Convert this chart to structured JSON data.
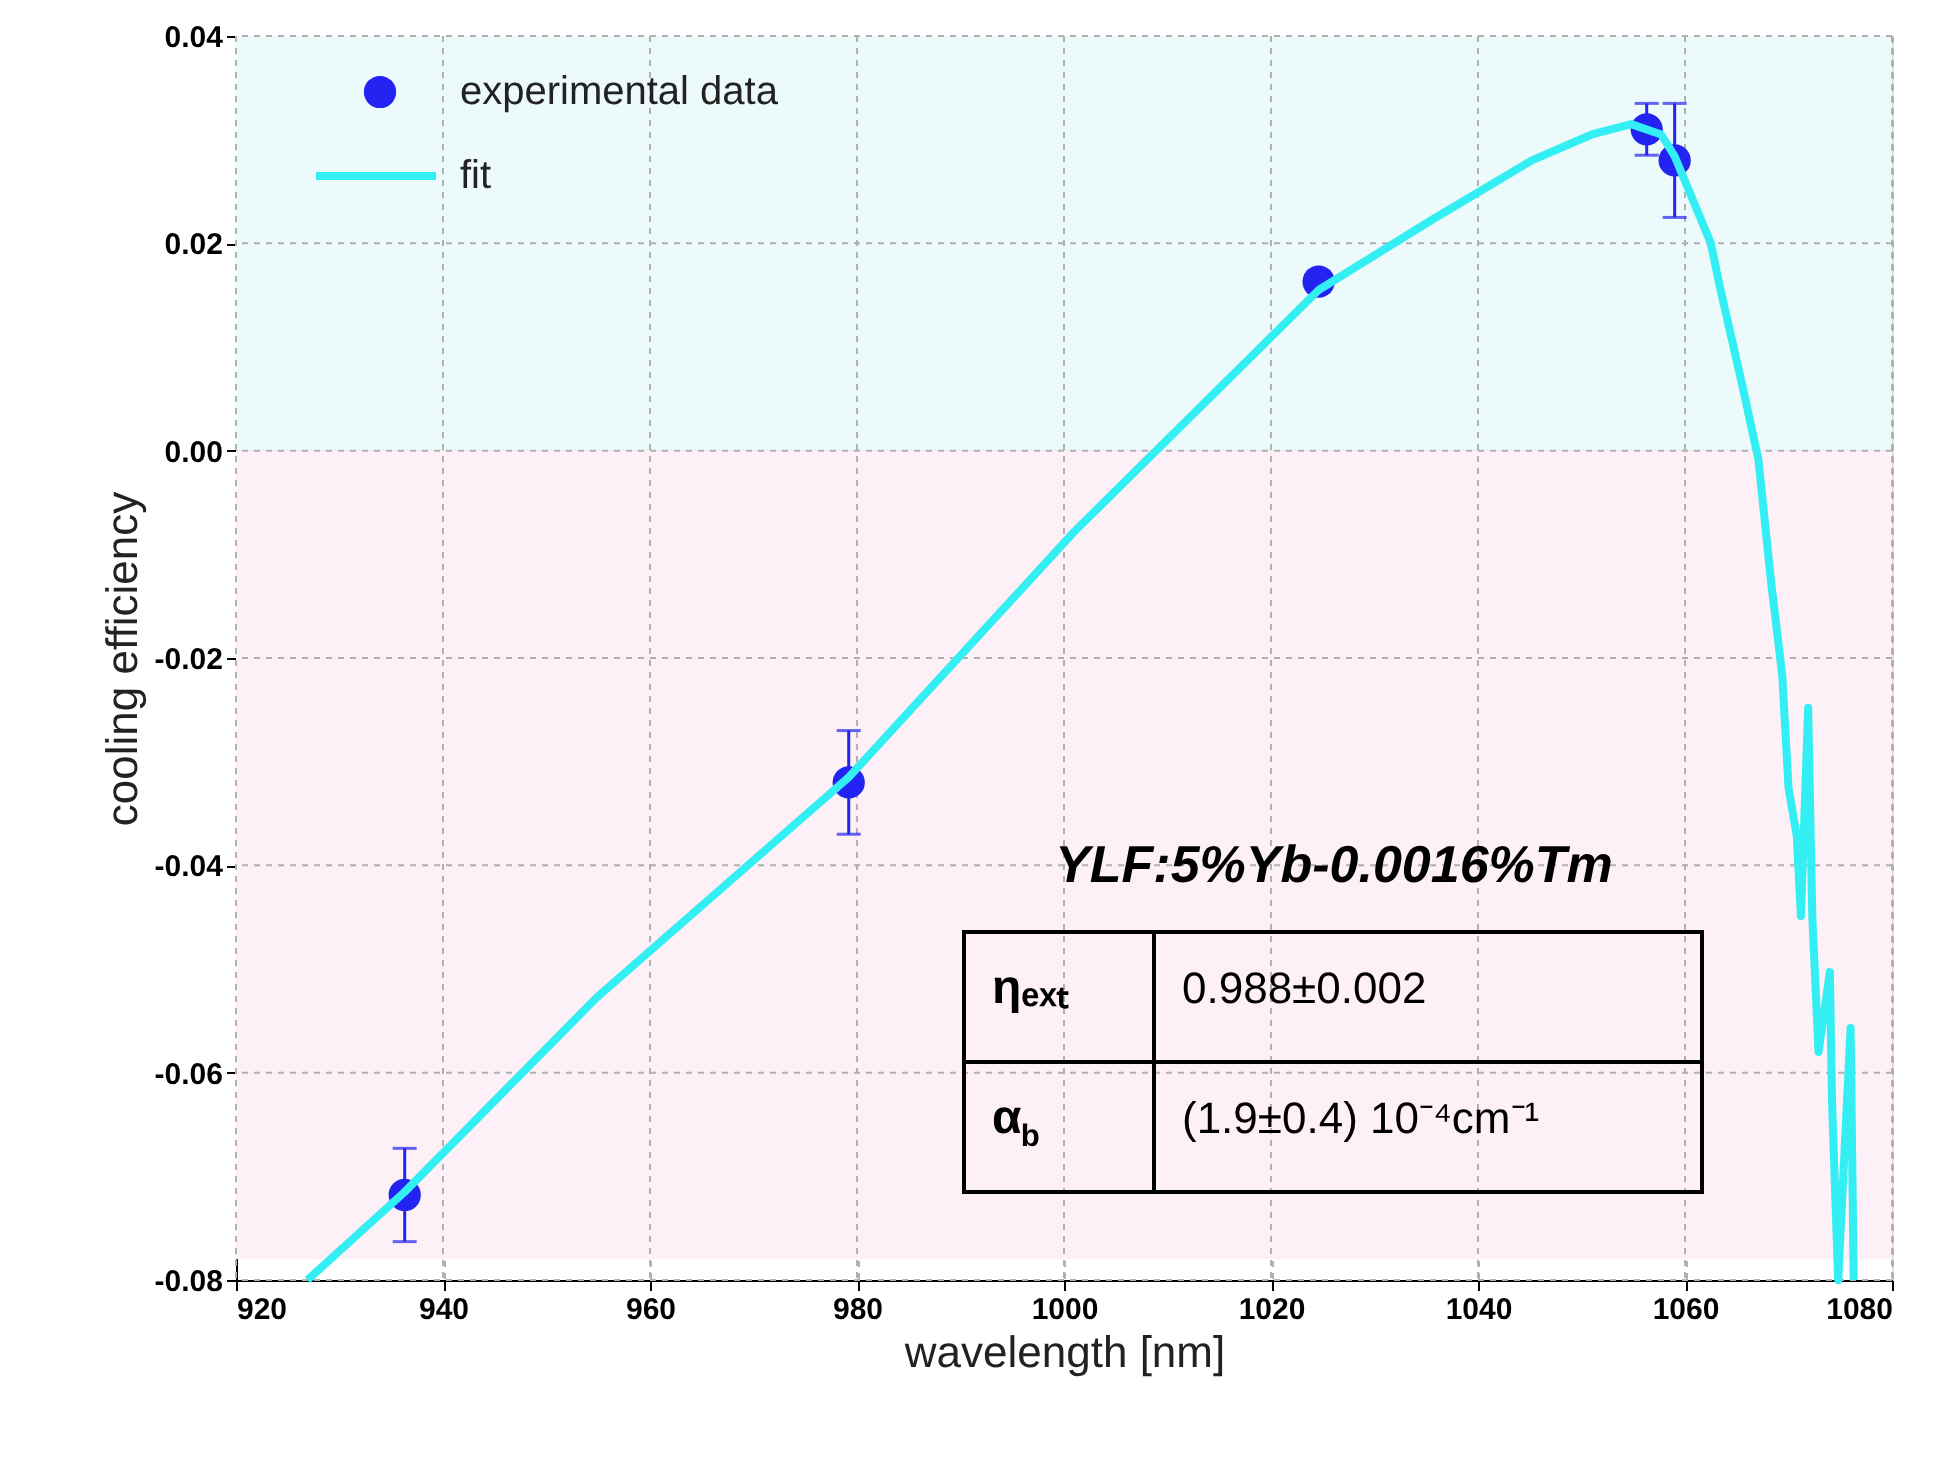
{
  "chart_data": {
    "type": "scatter",
    "xlabel": "wavelength [nm]",
    "ylabel": "cooling efficiency",
    "xlim": [
      920,
      1080
    ],
    "xticks": [
      920,
      940,
      960,
      980,
      1000,
      1020,
      1040,
      1060,
      1080
    ],
    "ylim": [
      -0.08,
      0.04
    ],
    "yticks": [
      {
        "value": -0.08,
        "label": "-0.08"
      },
      {
        "value": -0.06,
        "label": "-0.06"
      },
      {
        "value": -0.04,
        "label": "-0.04"
      },
      {
        "value": -0.02,
        "label": "-0.02"
      },
      {
        "value": 0,
        "label": "0.00"
      },
      {
        "value": 0.02,
        "label": "0.02"
      },
      {
        "value": 0.04,
        "label": "0.04"
      }
    ],
    "grid": true,
    "legend": "top left",
    "bands": [
      {
        "axis": "y",
        "from": 0,
        "to": 0.04,
        "color": "#edfafb"
      },
      {
        "axis": "y",
        "from": -0.078,
        "to": 0,
        "color": "#fdf0f6"
      }
    ],
    "series": [
      {
        "name": "experimental data",
        "marker": "circle",
        "color": "#2323f2",
        "x": [
          936.3,
          979.2,
          1024.6,
          1056.3,
          1059.0
        ],
        "values": [
          -0.0718,
          -0.032,
          0.0163,
          0.031,
          0.028
        ],
        "errors": [
          0.0045,
          0.005,
          0.001,
          0.0025,
          0.0055
        ]
      },
      {
        "name": "fit",
        "type": "line",
        "marker": "none",
        "line_style": "solid",
        "color": "#33eef2",
        "x": [
          926.9,
          936.3,
          954.8,
          979.2,
          1001,
          1024.6,
          1035.6,
          1045.2,
          1051,
          1054.8,
          1057.7,
          1059.0,
          1062.5,
          1063.3,
          1065.6,
          1067.1,
          1068.3,
          1069.4,
          1070.0,
          1070.8,
          1071.2,
          1071.9,
          1072.3,
          1072.9,
          1074.0,
          1074.2,
          1074.8,
          1076.0,
          1076.3
        ],
        "values": [
          -0.08,
          -0.0715,
          -0.0528,
          -0.0315,
          -0.0078,
          0.0155,
          0.0223,
          0.028,
          0.0305,
          0.0315,
          0.0305,
          0.0284,
          0.02,
          0.0161,
          0.006,
          -0.0009,
          -0.0125,
          -0.0217,
          -0.0325,
          -0.0372,
          -0.0449,
          -0.0248,
          -0.0449,
          -0.058,
          -0.0503,
          -0.0626,
          -0.08,
          -0.0557,
          -0.08
        ]
      }
    ],
    "annotations": [
      "YLF:5%Yb-0.0016%Tm",
      "ηₑₓₜ",
      "0.988±0.002",
      "α$_{b}$",
      "(1.9±0.4) 10⁻⁴cm⁻¹"
    ]
  }
}
